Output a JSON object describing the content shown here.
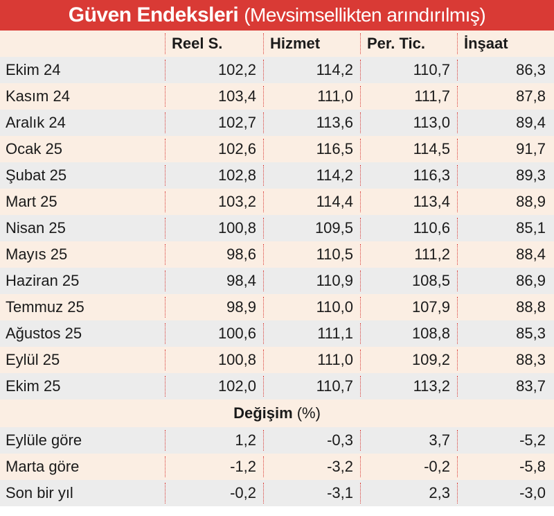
{
  "chart_data": {
    "type": "table",
    "title": "Güven Endeksleri",
    "subtitle": "(Mevsimsellikten arındırılmış)",
    "columns": [
      "Reel S.",
      "Hizmet",
      "Per. Tic.",
      "İnşaat"
    ],
    "rows": [
      {
        "label": "Ekim 24",
        "values": [
          "102,2",
          "114,2",
          "110,7",
          "86,3"
        ]
      },
      {
        "label": "Kasım 24",
        "values": [
          "103,4",
          "111,0",
          "111,7",
          "87,8"
        ]
      },
      {
        "label": "Aralık 24",
        "values": [
          "102,7",
          "113,6",
          "113,0",
          "89,4"
        ]
      },
      {
        "label": "Ocak 25",
        "values": [
          "102,6",
          "116,5",
          "114,5",
          "91,7"
        ]
      },
      {
        "label": "Şubat 25",
        "values": [
          "102,8",
          "114,2",
          "116,3",
          "89,3"
        ]
      },
      {
        "label": "Mart 25",
        "values": [
          "103,2",
          "114,4",
          "113,4",
          "88,9"
        ]
      },
      {
        "label": "Nisan 25",
        "values": [
          "100,8",
          "109,5",
          "110,6",
          "85,1"
        ]
      },
      {
        "label": "Mayıs 25",
        "values": [
          "98,6",
          "110,5",
          "111,2",
          "88,4"
        ]
      },
      {
        "label": "Haziran 25",
        "values": [
          "98,4",
          "110,9",
          "108,5",
          "86,9"
        ]
      },
      {
        "label": "Temmuz 25",
        "values": [
          "98,9",
          "110,0",
          "107,9",
          "88,8"
        ]
      },
      {
        "label": "Ağustos 25",
        "values": [
          "100,6",
          "111,1",
          "108,8",
          "85,3"
        ]
      },
      {
        "label": "Eylül 25",
        "values": [
          "100,8",
          "111,0",
          "109,2",
          "88,3"
        ]
      },
      {
        "label": "Ekim 25",
        "values": [
          "102,0",
          "110,7",
          "113,2",
          "83,7"
        ]
      }
    ],
    "change_section": {
      "title": "Değişim",
      "unit": "(%)",
      "rows": [
        {
          "label": "Eylüle göre",
          "values": [
            "1,2",
            "-0,3",
            "3,7",
            "-5,2"
          ]
        },
        {
          "label": "Marta göre",
          "values": [
            "-1,2",
            "-3,2",
            "-0,2",
            "-5,8"
          ]
        },
        {
          "label": "Son bir yıl",
          "values": [
            "-0,2",
            "-3,1",
            "2,3",
            "-3,0"
          ]
        }
      ]
    }
  },
  "colors": {
    "header_bg": "#d93a35",
    "row_gray": "#ececec",
    "row_peach": "#fbeee3",
    "separator": "#d93a35"
  }
}
